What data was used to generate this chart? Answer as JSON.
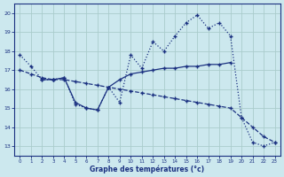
{
  "background_color": "#cce8ee",
  "line_color": "#1a3080",
  "grid_color": "#b8d8e0",
  "xlabel": "Graphe des températures (°c)",
  "ylim": [
    12.5,
    20.5
  ],
  "xlim": [
    -0.5,
    23.5
  ],
  "yticks": [
    13,
    14,
    15,
    16,
    17,
    18,
    19,
    20
  ],
  "xticks": [
    0,
    1,
    2,
    3,
    4,
    5,
    6,
    7,
    8,
    9,
    10,
    11,
    12,
    13,
    14,
    15,
    16,
    17,
    18,
    19,
    20,
    21,
    22,
    23
  ],
  "series_upper_x": [
    0,
    1,
    2,
    3,
    4,
    5,
    6,
    7,
    8,
    9,
    10,
    11,
    12,
    13,
    14,
    15,
    16,
    17,
    18,
    19,
    20,
    21,
    22,
    23
  ],
  "series_upper_y": [
    17.8,
    17.2,
    16.5,
    16.5,
    16.6,
    15.2,
    15.0,
    14.9,
    16.1,
    15.3,
    17.8,
    17.1,
    18.5,
    18.0,
    18.8,
    19.5,
    19.9,
    19.2,
    19.5,
    18.8,
    14.5,
    13.2,
    13.0,
    13.2
  ],
  "series_diag_x": [
    0,
    1,
    2,
    3,
    4,
    5,
    6,
    7,
    8,
    9,
    10,
    11,
    12,
    13,
    14,
    15,
    16,
    17,
    18,
    19,
    20,
    21,
    22,
    23
  ],
  "series_diag_y": [
    17.0,
    16.8,
    16.6,
    16.5,
    16.5,
    16.4,
    16.3,
    16.2,
    16.1,
    16.0,
    15.9,
    15.8,
    15.7,
    15.6,
    15.5,
    15.4,
    15.3,
    15.2,
    15.1,
    15.0,
    14.5,
    14.0,
    13.5,
    13.2
  ],
  "series_lower_x": [
    2,
    3,
    4,
    5,
    6,
    7,
    8,
    9,
    10,
    11,
    12,
    13,
    14,
    15,
    16,
    17,
    18,
    19
  ],
  "series_lower_y": [
    16.5,
    16.5,
    16.6,
    15.3,
    15.0,
    14.9,
    16.1,
    16.5,
    16.8,
    16.9,
    17.0,
    17.1,
    17.1,
    17.2,
    17.2,
    17.3,
    17.3,
    17.4
  ]
}
